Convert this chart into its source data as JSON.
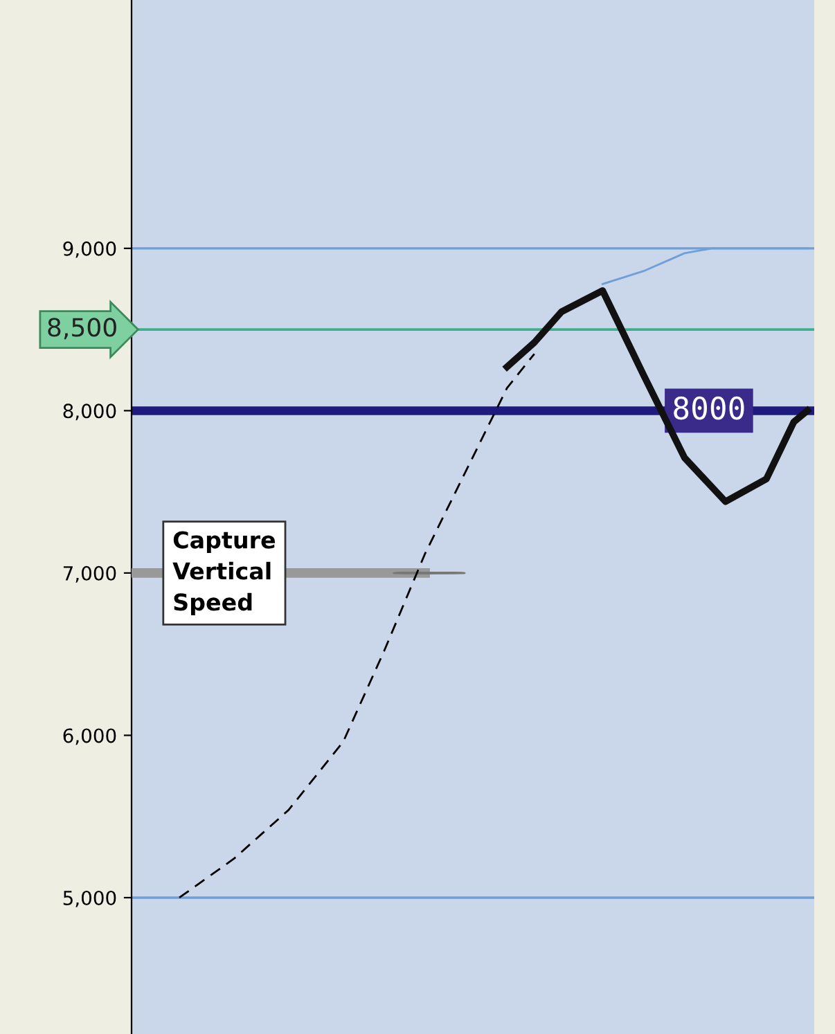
{
  "chart_data": {
    "type": "line",
    "categories": [
      null,
      null,
      null,
      null,
      null,
      null,
      null,
      null,
      null,
      null,
      null,
      null,
      null,
      null,
      null,
      null,
      null,
      null,
      null,
      null,
      null,
      null,
      null,
      null,
      null,
      null,
      null,
      null,
      null,
      null,
      null,
      null,
      null,
      null,
      null,
      null,
      null,
      null,
      null,
      null,
      null,
      null,
      null,
      null,
      null,
      null,
      null,
      null,
      null,
      null
    ],
    "series": [
      {
        "color": "#000000",
        "line_style": "dashed",
        "values": [
          null,
          null,
          null,
          5000,
          null,
          null,
          null,
          5240,
          null,
          null,
          null,
          5540,
          null,
          null,
          null,
          5960,
          null,
          null,
          6520,
          null,
          null,
          7120,
          null,
          null,
          7630,
          null,
          null,
          8140,
          null,
          8350,
          null,
          null,
          null,
          null,
          null,
          null,
          null,
          null,
          null,
          null,
          null,
          null,
          null,
          null,
          null,
          null,
          null,
          null,
          null,
          null
        ]
      },
      {
        "color": "#6f9fd8",
        "line_style": "solid",
        "values": [
          null,
          null,
          null,
          null,
          null,
          null,
          null,
          null,
          null,
          null,
          null,
          null,
          null,
          null,
          null,
          null,
          null,
          null,
          null,
          null,
          null,
          null,
          null,
          null,
          null,
          null,
          null,
          null,
          null,
          null,
          null,
          null,
          null,
          null,
          8780,
          null,
          null,
          8860,
          null,
          null,
          8970,
          null,
          9000,
          null,
          null,
          null,
          null,
          null,
          null,
          9000
        ]
      },
      {
        "color": "#111111",
        "line_style": "solid",
        "values": [
          null,
          null,
          null,
          null,
          null,
          null,
          null,
          null,
          null,
          null,
          null,
          null,
          null,
          null,
          null,
          null,
          null,
          null,
          null,
          null,
          null,
          null,
          null,
          null,
          null,
          null,
          null,
          8270,
          null,
          8420,
          null,
          8610,
          null,
          null,
          8740,
          null,
          null,
          8220,
          null,
          null,
          7710,
          null,
          null,
          7440,
          null,
          null,
          7580,
          null,
          7930,
          8000
        ]
      }
    ],
    "ylim": [
      4160,
      10530
    ],
    "yticks": [
      {
        "value": 5000,
        "label": "5,000"
      },
      {
        "value": 6000,
        "label": "6,000"
      },
      {
        "value": 7000,
        "label": "7,000"
      },
      {
        "value": 8000,
        "label": "8,000"
      },
      {
        "value": 9000,
        "label": "9,000"
      }
    ],
    "tick_labels": "y",
    "grid": false,
    "ref_lines": [
      {
        "axis": "y",
        "value": 9000,
        "color": "#6f9fd8",
        "line_style": "solid"
      },
      {
        "axis": "y",
        "value": 8500,
        "label": "8,500",
        "color": "#3cb08a",
        "line_style": "solid"
      },
      {
        "axis": "y",
        "value": 8000,
        "label": "8000",
        "color": "#1e1a80",
        "line_style": "solid"
      },
      {
        "axis": "y",
        "value": 5000,
        "color": "#6f9fd8",
        "line_style": "solid"
      },
      {
        "axis": "y",
        "value": 7000,
        "label": "Capture\nVertical\nSpeed",
        "color": "#999999",
        "line_style": "solid"
      }
    ]
  }
}
